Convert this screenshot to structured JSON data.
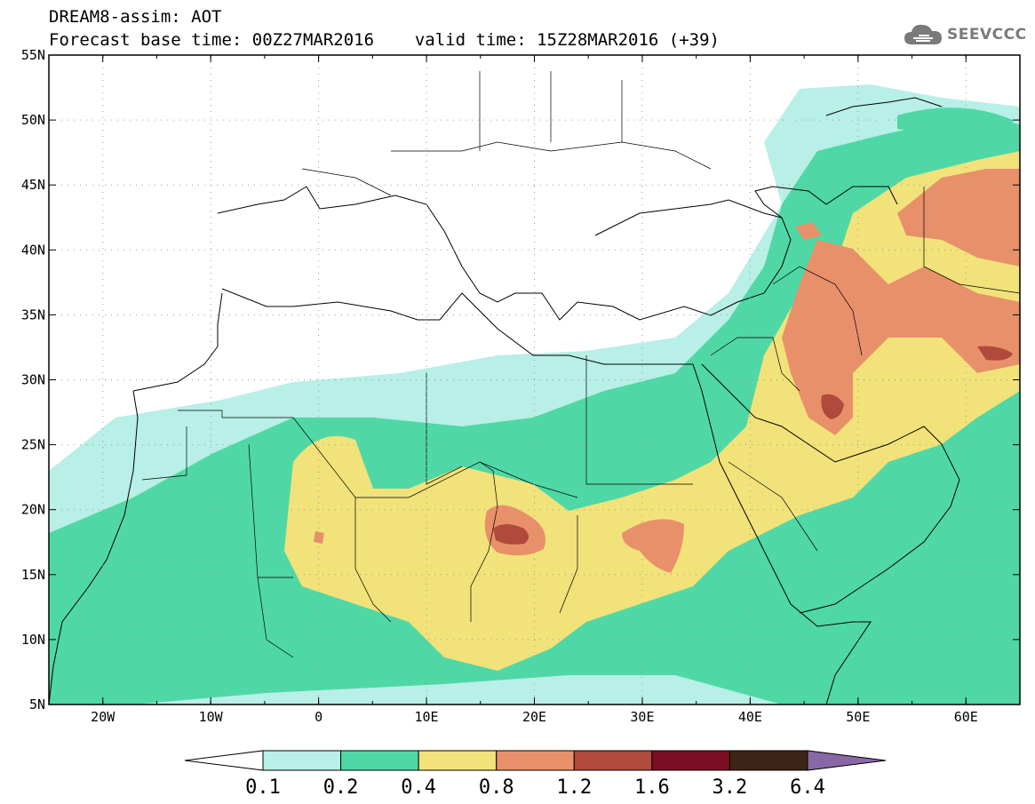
{
  "header": {
    "title": "DREAM8-assim: AOT",
    "subtitle_left": "Forecast base time: 00Z27MAR2016",
    "subtitle_right": "valid time: 15Z28MAR2016 (+39)"
  },
  "logo": {
    "text": "SEEVCCC",
    "icon": "cloud-icon",
    "color": "#7a7a7a"
  },
  "map": {
    "lon_range": [
      -25,
      65
    ],
    "lat_range": [
      5,
      55
    ],
    "lon_ticks": [
      "20W",
      "10W",
      "0",
      "10E",
      "20E",
      "30E",
      "40E",
      "50E",
      "60E"
    ],
    "lat_ticks": [
      "5N",
      "10N",
      "15N",
      "20N",
      "25N",
      "30N",
      "35N",
      "40N",
      "45N",
      "50N",
      "55N"
    ],
    "grid": "dotted",
    "features": [
      "coastlines",
      "country-borders"
    ]
  },
  "colorbar": {
    "labels": [
      "0.1",
      "0.2",
      "0.4",
      "0.8",
      "1.2",
      "1.6",
      "3.2",
      "6.4"
    ],
    "colors": [
      "#ffffff",
      "#b8efe7",
      "#4fd8a6",
      "#f2e27a",
      "#e8906a",
      "#b04a3c",
      "#7a0e22",
      "#3d2516",
      "#8a68a8"
    ]
  }
}
